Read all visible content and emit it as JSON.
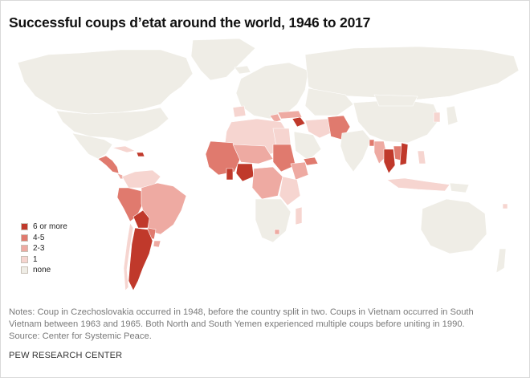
{
  "title": "Successful coups d’etat around the world, 1946 to 2017",
  "legend": {
    "items": [
      {
        "label": "6 or more",
        "color": "#c0392b"
      },
      {
        "label": "4-5",
        "color": "#e07a6e"
      },
      {
        "label": "2-3",
        "color": "#eeaaa2"
      },
      {
        "label": "1",
        "color": "#f6d5d0"
      },
      {
        "label": "none",
        "color": "#efede6"
      }
    ]
  },
  "colors": {
    "none": "#efede6",
    "one": "#f6d5d0",
    "two_three": "#eeaaa2",
    "four_five": "#e07a6e",
    "six_plus": "#c0392b",
    "border": "#ffffff"
  },
  "notes": {
    "line1": "Notes: Coup in Czechoslovakia occurred in 1948, before the country split in two. Coups in Vietnam occurred in South",
    "line2": "Vietnam between 1963 and 1965. Both North and South Yemen experienced multiple coups before uniting in 1990.",
    "line3": "Source: Center for Systemic Peace."
  },
  "source_org": "PEW RESEARCH CENTER"
}
